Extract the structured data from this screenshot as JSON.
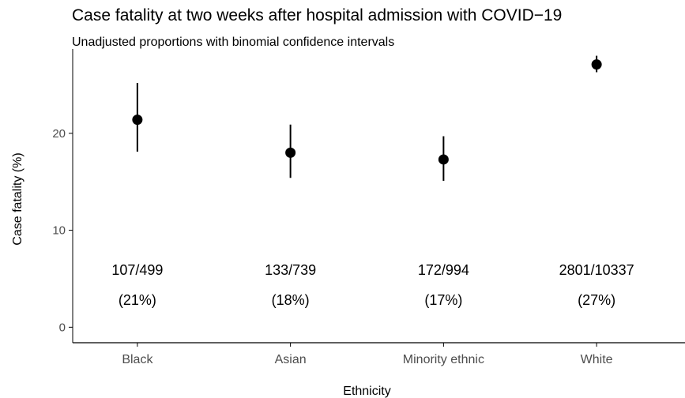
{
  "chart_data": {
    "type": "scatter",
    "title": "Case fatality at two weeks after hospital admission with COVID−19",
    "subtitle": "Unadjusted proportions with binomial confidence intervals",
    "xlabel": "Ethnicity",
    "ylabel": "Case fatality (%)",
    "categories": [
      "Black",
      "Asian",
      "Minority ethnic",
      "White"
    ],
    "values": [
      21.4,
      18.0,
      17.3,
      27.1
    ],
    "ci_lower": [
      18.1,
      15.4,
      15.1,
      26.3
    ],
    "ci_upper": [
      25.2,
      20.9,
      19.7,
      28.0
    ],
    "annotations": [
      {
        "counts": "107/499",
        "percent": "(21%)"
      },
      {
        "counts": "133/739",
        "percent": "(18%)"
      },
      {
        "counts": "172/994",
        "percent": "(17%)"
      },
      {
        "counts": "2801/10337",
        "percent": "(27%)"
      }
    ],
    "yticks": [
      0,
      10,
      20
    ],
    "ylim": [
      -1.6,
      28.7
    ],
    "grid": false,
    "legend": "none",
    "colors": {
      "point": "#000000",
      "axis": "#000000",
      "tick_label": "#4d4d4d"
    }
  }
}
